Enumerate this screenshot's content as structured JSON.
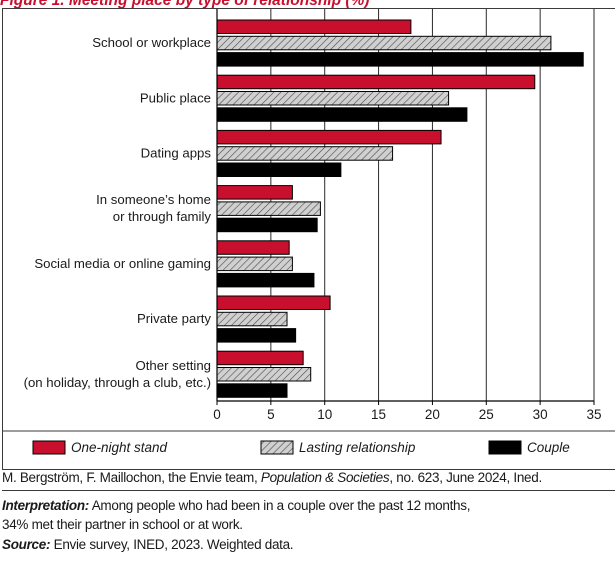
{
  "title": "Figure 1. Meeting place by type of relationship (%)",
  "chart_data": {
    "type": "bar",
    "orientation": "horizontal",
    "categories": [
      [
        "School or workplace"
      ],
      [
        "Public place"
      ],
      [
        "Dating apps"
      ],
      [
        "In someone’s home",
        "or through family"
      ],
      [
        "Social media or online gaming"
      ],
      [
        "Private party"
      ],
      [
        "Other setting",
        "(on holiday, through a club, etc.)"
      ]
    ],
    "series": [
      {
        "name": "One-night stand",
        "color": "#c8102e",
        "pattern": "solid",
        "values": [
          18,
          29.5,
          20.8,
          7,
          6.7,
          10.5,
          8
        ]
      },
      {
        "name": "Lasting relationship",
        "color": "#c8c8c8",
        "pattern": "hatched",
        "values": [
          31,
          21.5,
          16.3,
          9.6,
          7,
          6.5,
          8.7
        ]
      },
      {
        "name": "Couple",
        "color": "#000000",
        "pattern": "solid",
        "values": [
          34,
          23.2,
          11.5,
          9.3,
          9,
          7.3,
          6.5
        ]
      }
    ],
    "xlim": [
      0,
      35
    ],
    "xticks": [
      0,
      5,
      10,
      15,
      20,
      25,
      30,
      35
    ],
    "grid": "vertical",
    "legend_position": "bottom"
  },
  "footer": {
    "credit_authors": "M. Bergström, F. Maillochon, the Envie team, ",
    "credit_journal": "Population & Societies",
    "credit_rest": ", no. 623, June 2024, Ined.",
    "interpretation_label": "Interpretation:",
    "interpretation_text": " Among people who had been in a couple over the past 12 months,",
    "interpretation_text2": "34% met their partner in school or at work.",
    "source_label": "Source:",
    "source_text": " Envie survey, INED, 2023. Weighted data."
  }
}
